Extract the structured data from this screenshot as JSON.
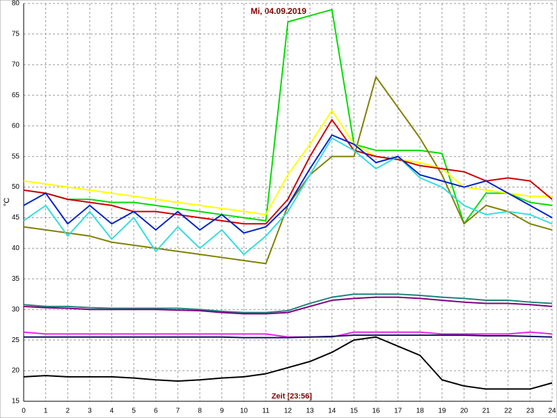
{
  "chart_data": {
    "type": "line",
    "title": "Mi, 04.09.2019",
    "x_label": "Zeit [23:56]",
    "y_label": "°C",
    "x": [
      0,
      1,
      2,
      3,
      4,
      5,
      6,
      7,
      8,
      9,
      10,
      11,
      12,
      13,
      14,
      15,
      16,
      17,
      18,
      19,
      20,
      21,
      22,
      23,
      24
    ],
    "xlim": [
      0,
      24
    ],
    "xticks": [
      0,
      1,
      2,
      3,
      4,
      5,
      6,
      7,
      8,
      9,
      10,
      11,
      12,
      13,
      14,
      15,
      16,
      17,
      18,
      19,
      20,
      21,
      22,
      23,
      24
    ],
    "ylim": [
      15,
      80
    ],
    "yticks": [
      15,
      20,
      25,
      30,
      35,
      40,
      45,
      50,
      55,
      60,
      65,
      70,
      75,
      80
    ],
    "grid": true,
    "series": [
      {
        "color": "#00dd00",
        "values": [
          49.5,
          49,
          48,
          48,
          47.5,
          47.5,
          47,
          46.5,
          46,
          45.5,
          45,
          44.5,
          77,
          78,
          79,
          57,
          56,
          56,
          56,
          55.5,
          44,
          49,
          49,
          47.5,
          47
        ]
      },
      {
        "color": "#808000",
        "values": [
          43.5,
          43,
          42.5,
          42,
          41,
          40.5,
          40,
          39.5,
          39,
          38.5,
          38,
          37.5,
          47,
          52,
          55,
          55,
          68,
          63,
          58,
          52,
          44,
          47,
          46,
          44,
          43
        ]
      },
      {
        "color": "#ffff00",
        "values": [
          51,
          50.5,
          50,
          49.5,
          49,
          48.5,
          48,
          47.5,
          47,
          46.5,
          46,
          45.5,
          52,
          57,
          62.5,
          57,
          55,
          54.5,
          54,
          53,
          50,
          49.5,
          49,
          48.5,
          48.5
        ]
      },
      {
        "color": "#cc0000",
        "values": [
          49.5,
          49,
          48,
          47.5,
          47,
          46,
          46,
          45.5,
          45,
          44.5,
          44,
          44,
          48,
          55,
          61,
          56,
          55,
          54.5,
          53.5,
          53,
          52.5,
          51,
          51.5,
          51,
          48
        ]
      },
      {
        "color": "#33dddd",
        "values": [
          44.5,
          47,
          42,
          46,
          41.5,
          45,
          39.5,
          43.5,
          40,
          43,
          39,
          42,
          46,
          52,
          58,
          56,
          53,
          55,
          51.5,
          50,
          47,
          45.5,
          46,
          45.5,
          44
        ]
      },
      {
        "color": "#0022cc",
        "values": [
          47,
          49,
          44,
          47,
          44,
          46,
          43,
          46,
          43,
          45.5,
          42.5,
          43.5,
          47,
          53,
          58.5,
          57,
          54,
          55,
          52,
          51,
          50,
          51,
          49,
          47,
          45
        ]
      },
      {
        "color": "#208080",
        "values": [
          30.8,
          30.5,
          30.5,
          30.3,
          30.2,
          30.2,
          30.2,
          30.2,
          30,
          29.7,
          29.5,
          29.5,
          29.8,
          31,
          32,
          32.5,
          32.5,
          32.5,
          32.3,
          32,
          31.8,
          31.5,
          31.5,
          31.2,
          31
        ]
      },
      {
        "color": "#800080",
        "values": [
          30.5,
          30.3,
          30.2,
          30,
          30,
          30,
          30,
          29.9,
          29.8,
          29.5,
          29.3,
          29.3,
          29.5,
          30.5,
          31.5,
          31.8,
          32,
          32,
          31.8,
          31.5,
          31.2,
          31,
          31,
          30.8,
          30.5
        ]
      },
      {
        "color": "#ee22ee",
        "values": [
          26.3,
          26,
          26,
          26,
          26,
          26,
          26,
          26,
          26,
          26,
          26,
          26,
          25.5,
          25.5,
          25.5,
          26.3,
          26.3,
          26.3,
          26.3,
          26,
          26,
          26,
          26,
          26.3,
          26
        ]
      },
      {
        "color": "#101060",
        "values": [
          25.5,
          25.5,
          25.5,
          25.5,
          25.5,
          25.5,
          25.5,
          25.5,
          25.5,
          25.5,
          25.4,
          25.4,
          25.4,
          25.5,
          25.6,
          25.8,
          25.8,
          25.8,
          25.8,
          25.8,
          25.8,
          25.7,
          25.7,
          25.6,
          25.5
        ]
      },
      {
        "color": "#000000",
        "values": [
          19,
          19.2,
          19,
          19,
          19,
          18.8,
          18.5,
          18.3,
          18.5,
          18.8,
          19,
          19.5,
          20.5,
          21.5,
          23,
          25,
          25.5,
          24,
          22.5,
          18.5,
          17.5,
          17,
          17,
          17,
          18
        ]
      }
    ]
  }
}
